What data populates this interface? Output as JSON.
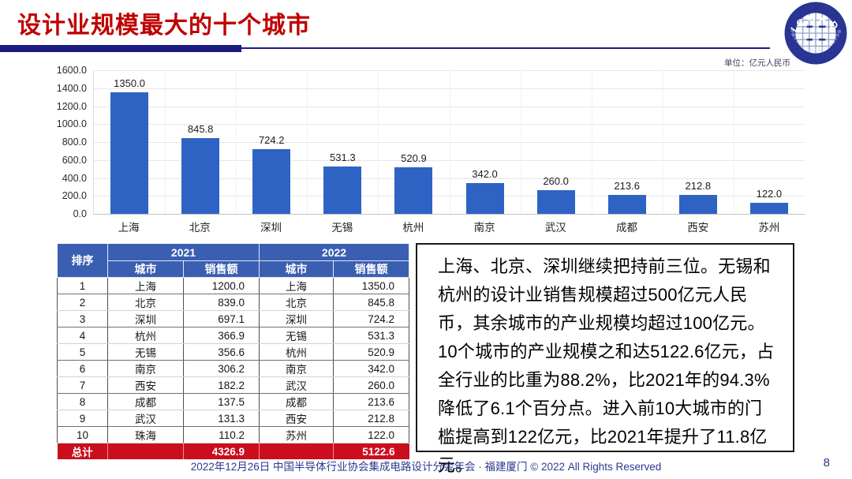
{
  "header": {
    "title": "设计业规模最大的十个城市",
    "logo_text": "ICCAD",
    "logo_subtext": "中国半导体行业协会集成电路设计分会"
  },
  "chart_data": {
    "type": "bar",
    "title": "",
    "unit_label": "单位：亿元人民币",
    "categories": [
      "上海",
      "北京",
      "深圳",
      "无锡",
      "杭州",
      "南京",
      "武汉",
      "成都",
      "西安",
      "苏州"
    ],
    "values": [
      1350.0,
      845.8,
      724.2,
      531.3,
      520.9,
      342.0,
      260.0,
      213.6,
      212.8,
      122.0
    ],
    "ylabel": "",
    "xlabel": "",
    "ylim": [
      0,
      1600
    ],
    "yticks": [
      "1600.0",
      "1400.0",
      "1200.0",
      "1000.0",
      "800.0",
      "600.0",
      "400.0",
      "200.0",
      "0.0"
    ],
    "grid": true,
    "legend": "none"
  },
  "table": {
    "rank_header": "排序",
    "year_headers": [
      "2021",
      "2022"
    ],
    "sub_headers": [
      "城市",
      "销售额",
      "城市",
      "销售额"
    ],
    "rows": [
      [
        "1",
        "上海",
        "1200.0",
        "上海",
        "1350.0"
      ],
      [
        "2",
        "北京",
        "839.0",
        "北京",
        "845.8"
      ],
      [
        "3",
        "深圳",
        "697.1",
        "深圳",
        "724.2"
      ],
      [
        "4",
        "杭州",
        "366.9",
        "无锡",
        "531.3"
      ],
      [
        "5",
        "无锡",
        "356.6",
        "杭州",
        "520.9"
      ],
      [
        "6",
        "南京",
        "306.2",
        "南京",
        "342.0"
      ],
      [
        "7",
        "西安",
        "182.2",
        "武汉",
        "260.0"
      ],
      [
        "8",
        "成都",
        "137.5",
        "成都",
        "213.6"
      ],
      [
        "9",
        "武汉",
        "131.3",
        "西安",
        "212.8"
      ],
      [
        "10",
        "珠海",
        "110.2",
        "苏州",
        "122.0"
      ]
    ],
    "total": {
      "label": "总计",
      "sales_2021": "4326.9",
      "sales_2022": "5122.6"
    }
  },
  "commentary": "上海、北京、深圳继续把持前三位。无锡和杭州的设计业销售规模超过500亿元人民币，其余城市的产业规模均超过100亿元。10个城市的产业规模之和达5122.6亿元，占全行业的比重为88.2%，比2021年的94.3%降低了6.1个百分点。进入前10大城市的门槛提高到122亿元，比2021年提升了11.8亿元。",
  "footer": {
    "text": "2022年12月26日 中国半导体行业协会集成电路设计分会年会 · 福建厦门 © 2022 All Rights Reserved",
    "page_number": "8"
  },
  "colors": {
    "title_red": "#C00000",
    "navy": "#1B1B80",
    "bar_blue": "#2E63C4",
    "header_blue": "#3A5FB2",
    "total_red": "#CB0E1D",
    "footer_navy": "#2B3990",
    "logo_navy": "#283593"
  }
}
